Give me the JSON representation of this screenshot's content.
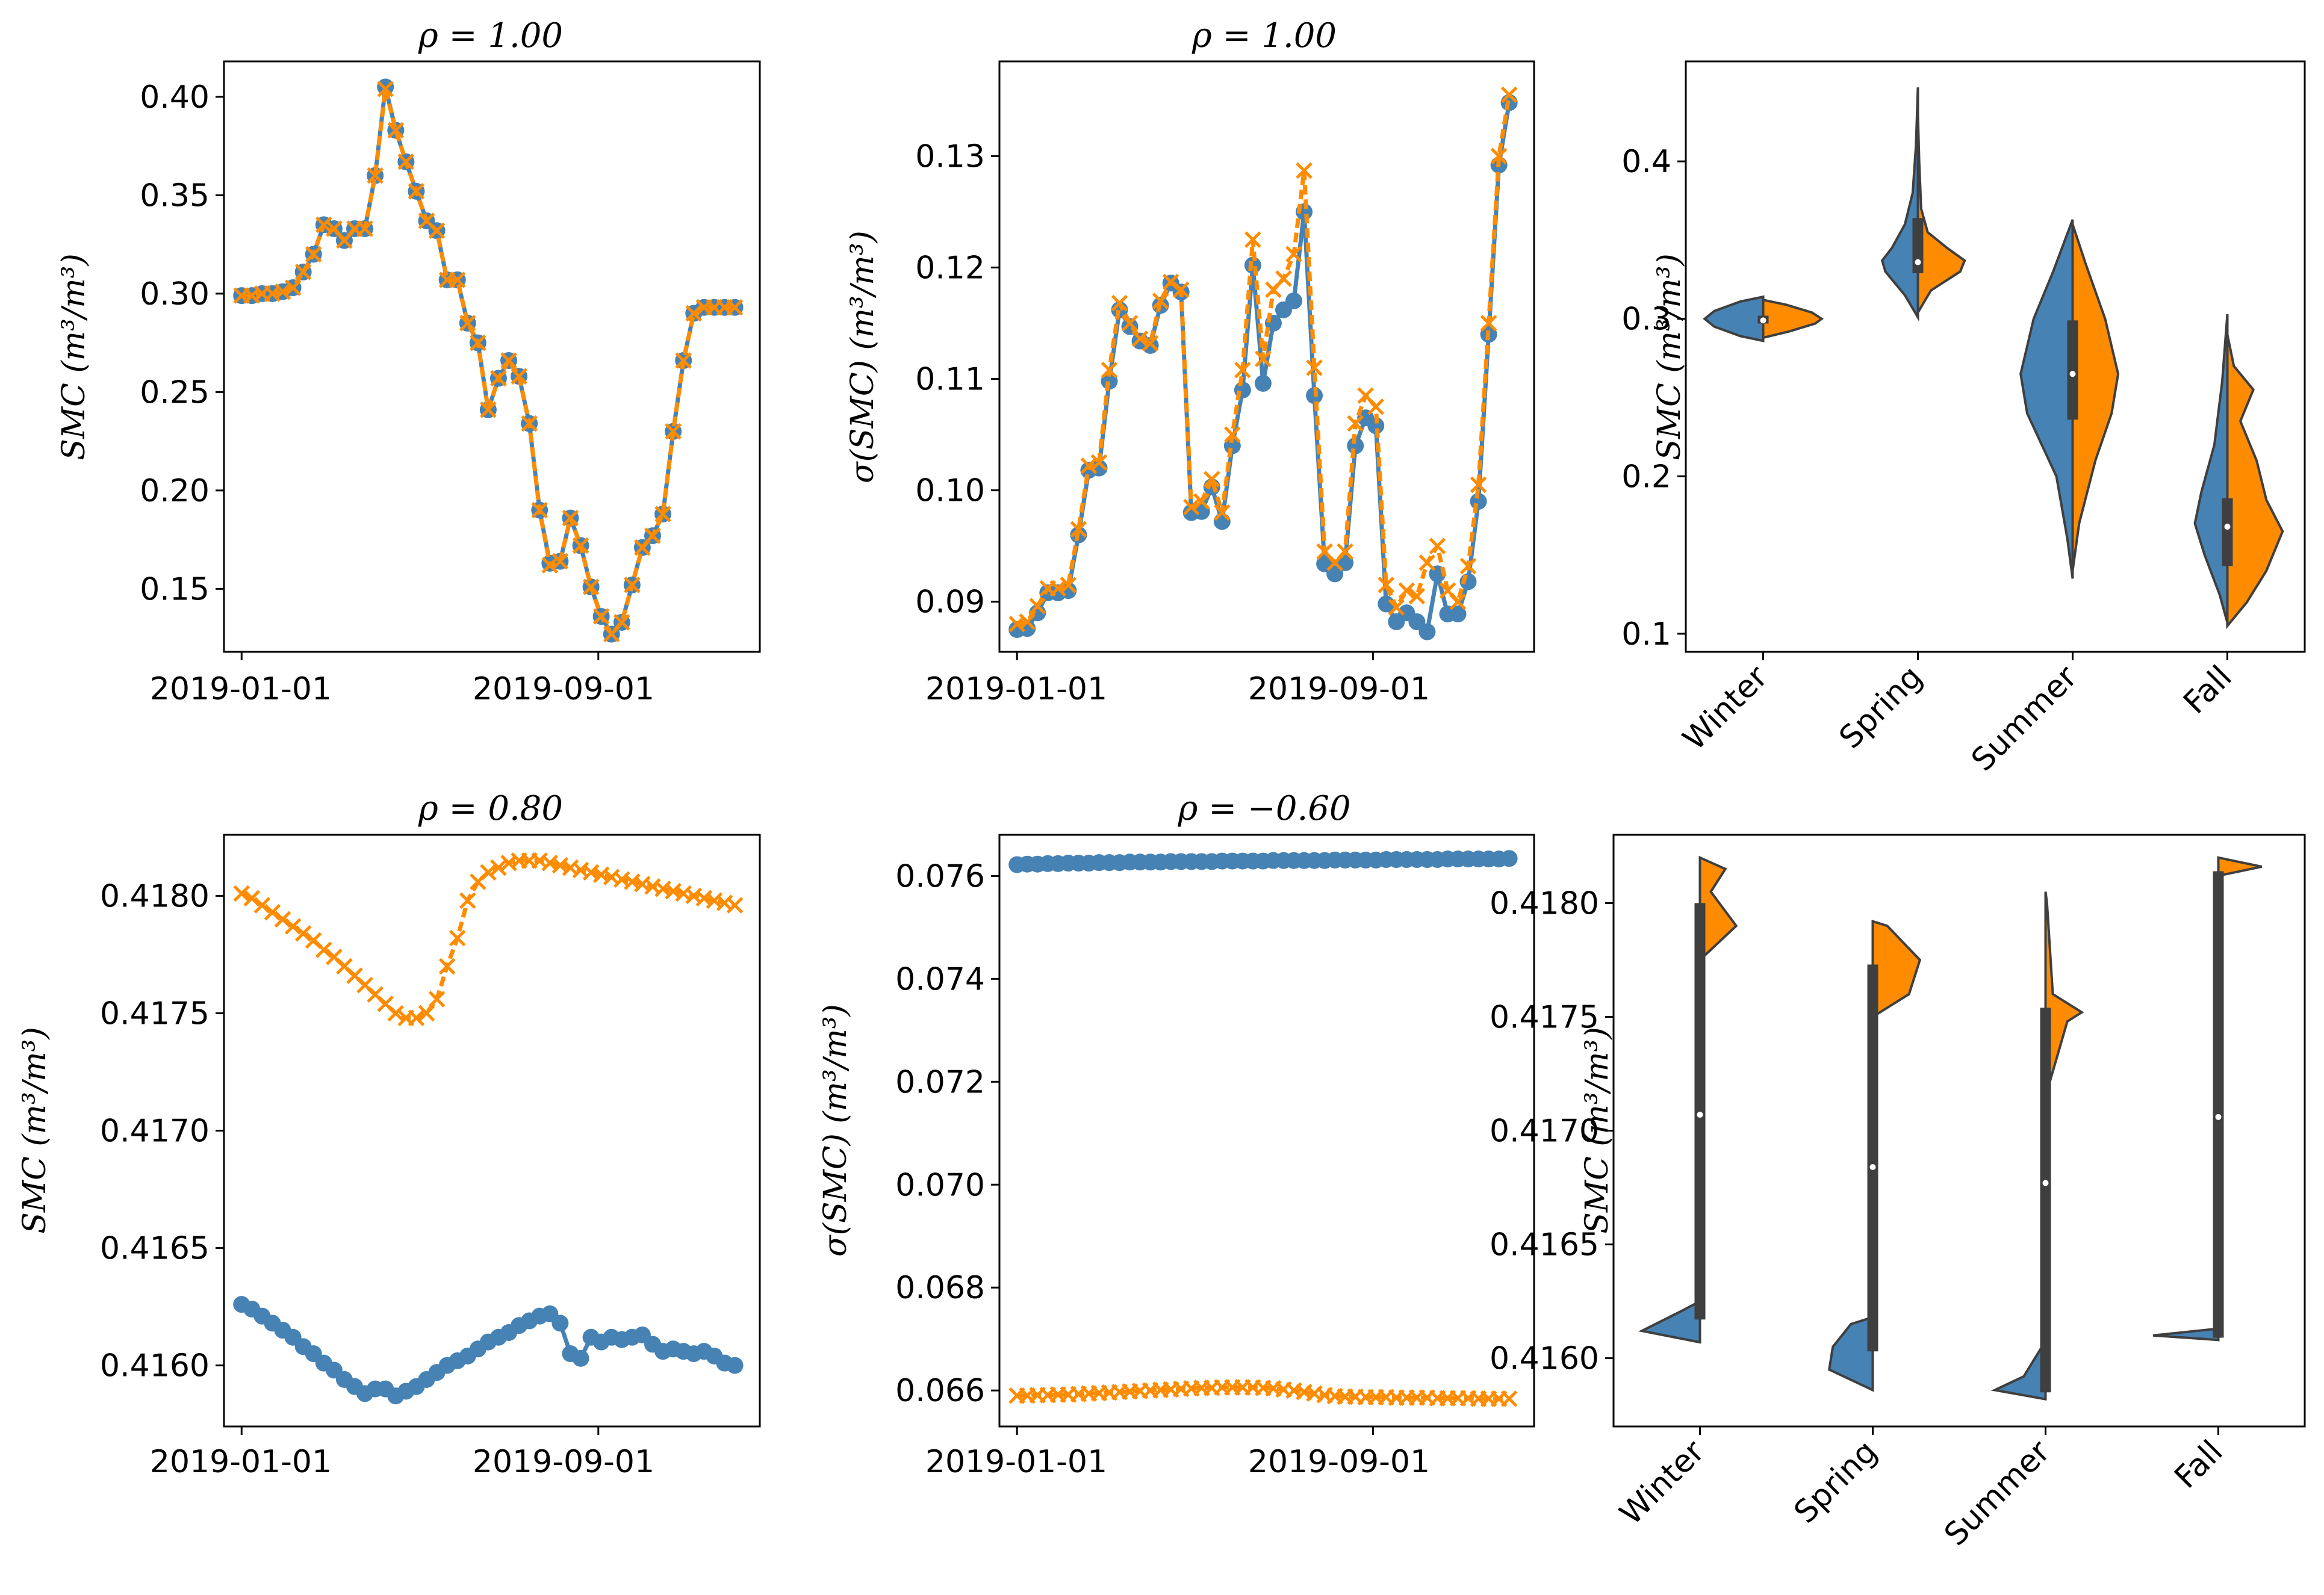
{
  "colors": {
    "blue": "#4682b4",
    "orange": "#ff8c00",
    "violin_edge": "#3f3f3f"
  },
  "chart_data": [
    {
      "type": "line",
      "title": "ρ = 1.00",
      "ylabel": "SMC (m³/m³)",
      "xtick_labels": [
        "2019-01-01",
        "2019-09-01"
      ],
      "ytick_labels": [
        "0.15",
        "0.20",
        "0.25",
        "0.30",
        "0.35",
        "0.40"
      ],
      "ylim": [
        0.118,
        0.418
      ],
      "xlim": [
        -12,
        353
      ],
      "x_ticks_days": [
        0,
        243
      ],
      "x_days": [
        0,
        7,
        14,
        21,
        28,
        35,
        42,
        49,
        56,
        63,
        70,
        77,
        84,
        91,
        98,
        105,
        112,
        119,
        126,
        133,
        140,
        147,
        154,
        161,
        168,
        175,
        182,
        189,
        196,
        203,
        210,
        217,
        224,
        231,
        238,
        245,
        252,
        259,
        266,
        273,
        280,
        287,
        294,
        301,
        308,
        315,
        322,
        329,
        336
      ],
      "series": [
        {
          "marker": "circle",
          "values": [
            0.299,
            0.299,
            0.3,
            0.3,
            0.301,
            0.303,
            0.311,
            0.32,
            0.335,
            0.333,
            0.327,
            0.333,
            0.333,
            0.36,
            0.405,
            0.383,
            0.367,
            0.352,
            0.337,
            0.332,
            0.307,
            0.307,
            0.285,
            0.275,
            0.241,
            0.257,
            0.266,
            0.258,
            0.234,
            0.19,
            0.163,
            0.164,
            0.186,
            0.172,
            0.151,
            0.136,
            0.127,
            0.133,
            0.152,
            0.171,
            0.177,
            0.188,
            0.23,
            0.266,
            0.29,
            0.293,
            0.293,
            0.293,
            0.293
          ]
        },
        {
          "marker": "x",
          "values": [
            0.299,
            0.299,
            0.3,
            0.3,
            0.301,
            0.303,
            0.311,
            0.32,
            0.335,
            0.333,
            0.327,
            0.333,
            0.333,
            0.36,
            0.404,
            0.383,
            0.367,
            0.352,
            0.337,
            0.332,
            0.307,
            0.307,
            0.285,
            0.275,
            0.241,
            0.257,
            0.266,
            0.258,
            0.234,
            0.19,
            0.162,
            0.164,
            0.186,
            0.172,
            0.151,
            0.136,
            0.127,
            0.133,
            0.152,
            0.171,
            0.177,
            0.188,
            0.23,
            0.266,
            0.29,
            0.293,
            0.293,
            0.293,
            0.293
          ]
        }
      ]
    },
    {
      "type": "line",
      "title": "ρ = 1.00",
      "ylabel": "σ(SMC) (m³/m³)",
      "xtick_labels": [
        "2019-01-01",
        "2019-09-01"
      ],
      "ytick_labels": [
        "0.09",
        "0.10",
        "0.11",
        "0.12",
        "0.13"
      ],
      "ylim": [
        0.0855,
        0.1385
      ],
      "xlim": [
        -12,
        353
      ],
      "x_ticks_days": [
        0,
        243
      ],
      "x_days": [
        0,
        7,
        14,
        21,
        28,
        35,
        42,
        49,
        56,
        63,
        70,
        77,
        84,
        91,
        98,
        105,
        112,
        119,
        126,
        133,
        140,
        147,
        154,
        161,
        168,
        175,
        182,
        189,
        196,
        203,
        210,
        217,
        224,
        231,
        238,
        245,
        252,
        259,
        266,
        273,
        280,
        287,
        294,
        301,
        308,
        315,
        322,
        329,
        336
      ],
      "series": [
        {
          "marker": "circle",
          "values": [
            0.0875,
            0.0876,
            0.089,
            0.0908,
            0.0908,
            0.091,
            0.096,
            0.1018,
            0.102,
            0.1098,
            0.1162,
            0.1147,
            0.1134,
            0.113,
            0.1166,
            0.1186,
            0.1178,
            0.098,
            0.0981,
            0.1003,
            0.0972,
            0.104,
            0.109,
            0.1202,
            0.1096,
            0.115,
            0.1162,
            0.117,
            0.125,
            0.1085,
            0.0934,
            0.0925,
            0.0935,
            0.104,
            0.1065,
            0.1058,
            0.0898,
            0.0882,
            0.089,
            0.0882,
            0.0873,
            0.0925,
            0.0889,
            0.0889,
            0.0918,
            0.099,
            0.114,
            0.1292,
            0.1348
          ]
        },
        {
          "marker": "x",
          "values": [
            0.088,
            0.0882,
            0.0896,
            0.0912,
            0.0912,
            0.0915,
            0.0965,
            0.1022,
            0.1025,
            0.1108,
            0.1168,
            0.115,
            0.1136,
            0.1132,
            0.117,
            0.1187,
            0.118,
            0.0985,
            0.099,
            0.101,
            0.098,
            0.105,
            0.1108,
            0.1225,
            0.1118,
            0.118,
            0.119,
            0.1212,
            0.1287,
            0.111,
            0.0945,
            0.0935,
            0.0945,
            0.106,
            0.1085,
            0.1075,
            0.0915,
            0.0895,
            0.091,
            0.0905,
            0.0935,
            0.095,
            0.091,
            0.09,
            0.0932,
            0.1005,
            0.115,
            0.13,
            0.1355
          ]
        }
      ]
    },
    {
      "type": "violin",
      "ylabel": "SMC (m³/m³)",
      "categories": [
        "Winter",
        "Spring",
        "Summer",
        "Fall"
      ],
      "ytick_labels": [
        "0.1",
        "0.2",
        "0.3",
        "0.4"
      ],
      "ylim": [
        0.0885,
        0.4635
      ],
      "medians": [
        0.299,
        0.336,
        0.265,
        0.168
      ],
      "quartiles": [
        [
          0.297,
          0.302
        ],
        [
          0.329,
          0.364
        ],
        [
          0.236,
          0.299
        ],
        [
          0.143,
          0.186
        ]
      ]
    },
    {
      "type": "line",
      "title": "ρ = 0.80",
      "ylabel": "SMC (m³/m³)",
      "xtick_labels": [
        "2019-01-01",
        "2019-09-01"
      ],
      "ytick_labels": [
        "0.4160",
        "0.4165",
        "0.4170",
        "0.4175",
        "0.4180"
      ],
      "ylim": [
        0.41574,
        0.41826
      ],
      "xlim": [
        -12,
        353
      ],
      "x_ticks_days": [
        0,
        243
      ],
      "x_days": [
        0,
        7,
        14,
        21,
        28,
        35,
        42,
        49,
        56,
        63,
        70,
        77,
        84,
        91,
        98,
        105,
        112,
        119,
        126,
        133,
        140,
        147,
        154,
        161,
        168,
        175,
        182,
        189,
        196,
        203,
        210,
        217,
        224,
        231,
        238,
        245,
        252,
        259,
        266,
        273,
        280,
        287,
        294,
        301,
        308,
        315,
        322,
        329,
        336
      ],
      "series": [
        {
          "marker": "circle",
          "values": [
            0.41626,
            0.41624,
            0.41621,
            0.41618,
            0.41615,
            0.41612,
            0.41608,
            0.41605,
            0.41601,
            0.41598,
            0.41594,
            0.41591,
            0.41588,
            0.4159,
            0.4159,
            0.41587,
            0.41589,
            0.41591,
            0.41594,
            0.41597,
            0.416,
            0.41602,
            0.41604,
            0.41607,
            0.4161,
            0.41612,
            0.41614,
            0.41617,
            0.41619,
            0.41621,
            0.41622,
            0.41618,
            0.41605,
            0.41603,
            0.41612,
            0.4161,
            0.41612,
            0.41611,
            0.41612,
            0.41613,
            0.41609,
            0.41606,
            0.41607,
            0.41606,
            0.41605,
            0.41606,
            0.41604,
            0.41601,
            0.416
          ]
        },
        {
          "marker": "x",
          "values": [
            0.41801,
            0.41799,
            0.41796,
            0.41793,
            0.4179,
            0.41787,
            0.41784,
            0.41781,
            0.41777,
            0.41774,
            0.4177,
            0.41766,
            0.41762,
            0.41758,
            0.41754,
            0.4175,
            0.41748,
            0.41748,
            0.4175,
            0.41756,
            0.4177,
            0.41782,
            0.41798,
            0.41806,
            0.4181,
            0.41812,
            0.41814,
            0.41815,
            0.41815,
            0.41815,
            0.41814,
            0.41813,
            0.41812,
            0.41811,
            0.4181,
            0.41809,
            0.41808,
            0.41807,
            0.41806,
            0.41805,
            0.41804,
            0.41803,
            0.41802,
            0.41801,
            0.418,
            0.41799,
            0.41798,
            0.41797,
            0.41796
          ]
        }
      ]
    },
    {
      "type": "line",
      "title": "ρ = −0.60",
      "ylabel": "σ(SMC) (m³/m³)",
      "xtick_labels": [
        "2019-01-01",
        "2019-09-01"
      ],
      "ytick_labels": [
        "0.066",
        "0.068",
        "0.070",
        "0.072",
        "0.074",
        "0.076"
      ],
      "ylim": [
        0.0653,
        0.0768
      ],
      "xlim": [
        -12,
        353
      ],
      "x_ticks_days": [
        0,
        243
      ],
      "x_days": [
        0,
        7,
        14,
        21,
        28,
        35,
        42,
        49,
        56,
        63,
        70,
        77,
        84,
        91,
        98,
        105,
        112,
        119,
        126,
        133,
        140,
        147,
        154,
        161,
        168,
        175,
        182,
        189,
        196,
        203,
        210,
        217,
        224,
        231,
        238,
        245,
        252,
        259,
        266,
        273,
        280,
        287,
        294,
        301,
        308,
        315,
        322,
        329,
        336
      ],
      "series": [
        {
          "marker": "circle",
          "values": [
            0.07622,
            0.07623,
            0.07623,
            0.07624,
            0.07624,
            0.07625,
            0.07625,
            0.07625,
            0.07626,
            0.07626,
            0.07626,
            0.07627,
            0.07627,
            0.07627,
            0.07627,
            0.07628,
            0.07628,
            0.07628,
            0.07628,
            0.07628,
            0.07629,
            0.07629,
            0.07629,
            0.07629,
            0.07629,
            0.0763,
            0.0763,
            0.0763,
            0.0763,
            0.0763,
            0.0763,
            0.07631,
            0.07631,
            0.07631,
            0.07631,
            0.07631,
            0.07632,
            0.07632,
            0.07632,
            0.07632,
            0.07632,
            0.07632,
            0.07633,
            0.07633,
            0.07633,
            0.07633,
            0.07633,
            0.07633,
            0.07634
          ]
        },
        {
          "marker": "x",
          "values": [
            0.0659,
            0.0659,
            0.06591,
            0.06591,
            0.06592,
            0.06592,
            0.06593,
            0.06594,
            0.06595,
            0.06596,
            0.06597,
            0.06598,
            0.06599,
            0.066,
            0.06601,
            0.06602,
            0.06603,
            0.06604,
            0.06605,
            0.06605,
            0.06606,
            0.06606,
            0.06606,
            0.06606,
            0.06605,
            0.06604,
            0.06602,
            0.066,
            0.06597,
            0.06594,
            0.06591,
            0.06589,
            0.06588,
            0.06588,
            0.06587,
            0.06587,
            0.06587,
            0.06586,
            0.06586,
            0.06586,
            0.06586,
            0.06585,
            0.06585,
            0.06585,
            0.06585,
            0.06584,
            0.06584,
            0.06584,
            0.06584
          ]
        }
      ]
    },
    {
      "type": "violin",
      "ylabel": "SMC (m³/m³)",
      "categories": [
        "Winter",
        "Spring",
        "Summer",
        "Fall"
      ],
      "ytick_labels": [
        "0.4160",
        "0.4165",
        "0.4170",
        "0.4175",
        "0.4180"
      ],
      "ylim": [
        0.4157,
        0.4183
      ],
      "medians": [
        0.41707,
        0.41684,
        0.41677,
        0.41706
      ],
      "quartiles": [
        [
          0.41617,
          0.418
        ],
        [
          0.41603,
          0.41773
        ],
        [
          0.41585,
          0.41754
        ],
        [
          0.41609,
          0.41814
        ]
      ]
    }
  ]
}
